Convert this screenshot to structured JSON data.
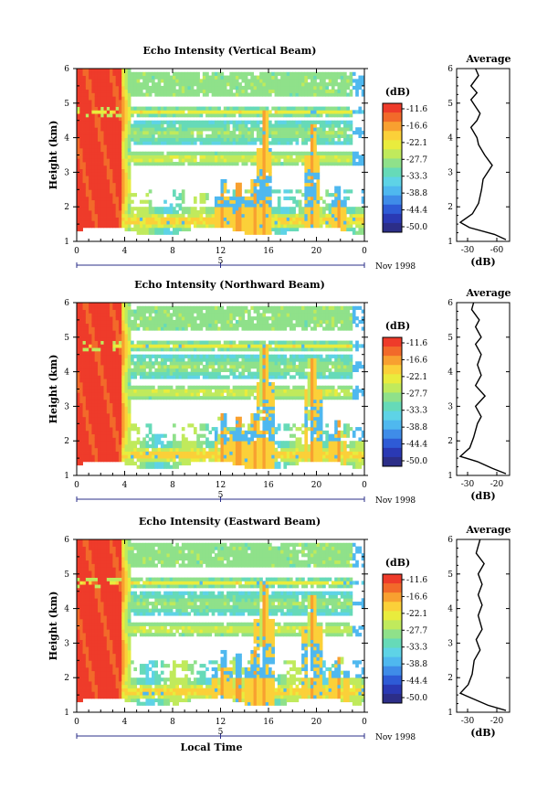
{
  "chart_data": [
    {
      "type": "heatmap",
      "title": "Echo Intensity (Vertical Beam)",
      "xlabel": "",
      "ylabel": "Height (km)",
      "xticks": [
        "0",
        "4",
        "8",
        "12",
        "16",
        "20",
        "0"
      ],
      "yticks": [
        "1",
        "2",
        "3",
        "4",
        "5",
        "6"
      ],
      "xlim": [
        0,
        24
      ],
      "ylim": [
        1,
        6
      ],
      "date_axis": {
        "tick": "5",
        "label": "Nov 1998"
      },
      "colorbar": {
        "unit": "(dB)",
        "levels": [
          "-11.6",
          "-16.6",
          "-22.1",
          "-27.7",
          "-33.3",
          "-38.8",
          "-44.4",
          "-50.0"
        ]
      },
      "profile": {
        "title": "Average",
        "xlabel": "(dB)",
        "xticks": [
          "-30",
          "-60"
        ],
        "points": [
          [
            1.05,
            -20
          ],
          [
            1.2,
            -35
          ],
          [
            1.4,
            -68
          ],
          [
            1.55,
            -80
          ],
          [
            1.8,
            -64
          ],
          [
            2.1,
            -56
          ],
          [
            2.5,
            -52
          ],
          [
            2.8,
            -50
          ],
          [
            3.0,
            -44
          ],
          [
            3.2,
            -38
          ],
          [
            3.5,
            -48
          ],
          [
            3.8,
            -56
          ],
          [
            4.0,
            -58
          ],
          [
            4.3,
            -66
          ],
          [
            4.5,
            -58
          ],
          [
            4.7,
            -54
          ],
          [
            4.9,
            -60
          ],
          [
            5.1,
            -66
          ],
          [
            5.3,
            -58
          ],
          [
            5.5,
            -66
          ],
          [
            5.8,
            -56
          ],
          [
            6.0,
            -60
          ]
        ]
      }
    },
    {
      "type": "heatmap",
      "title": "Echo Intensity (Northward Beam)",
      "xlabel": "",
      "ylabel": "Height (km)",
      "xticks": [
        "0",
        "4",
        "8",
        "12",
        "16",
        "20",
        "0"
      ],
      "yticks": [
        "1",
        "2",
        "3",
        "4",
        "5",
        "6"
      ],
      "xlim": [
        0,
        24
      ],
      "ylim": [
        1,
        6
      ],
      "date_axis": {
        "tick": "5",
        "label": "Nov 1998"
      },
      "colorbar": {
        "unit": "(dB)",
        "levels": [
          "-11.6",
          "-16.6",
          "-22.1",
          "-27.7",
          "-33.3",
          "-38.8",
          "-44.4",
          "-50.0"
        ]
      },
      "profile": {
        "title": "Average",
        "xlabel": "(dB)",
        "xticks": [
          "-30",
          "-20"
        ],
        "points": [
          [
            1.05,
            -11
          ],
          [
            1.2,
            -18
          ],
          [
            1.4,
            -26
          ],
          [
            1.55,
            -35
          ],
          [
            1.8,
            -30
          ],
          [
            2.1,
            -28
          ],
          [
            2.5,
            -26
          ],
          [
            2.7,
            -24
          ],
          [
            3.0,
            -27
          ],
          [
            3.3,
            -22
          ],
          [
            3.6,
            -27
          ],
          [
            3.9,
            -24
          ],
          [
            4.2,
            -26
          ],
          [
            4.5,
            -24
          ],
          [
            4.8,
            -27
          ],
          [
            5.0,
            -24
          ],
          [
            5.3,
            -27
          ],
          [
            5.5,
            -25
          ],
          [
            5.8,
            -29
          ],
          [
            6.0,
            -28
          ]
        ]
      }
    },
    {
      "type": "heatmap",
      "title": "Echo Intensity (Eastward Beam)",
      "xlabel": "Local Time",
      "ylabel": "Height (km)",
      "xticks": [
        "0",
        "4",
        "8",
        "12",
        "16",
        "20",
        "0"
      ],
      "yticks": [
        "1",
        "2",
        "3",
        "4",
        "5",
        "6"
      ],
      "xlim": [
        0,
        24
      ],
      "ylim": [
        1,
        6
      ],
      "date_axis": {
        "tick": "5",
        "label": "Nov 1998"
      },
      "colorbar": {
        "unit": "(dB)",
        "levels": [
          "-11.6",
          "-16.6",
          "-22.1",
          "-27.7",
          "-33.3",
          "-38.8",
          "-44.4",
          "-50.0"
        ]
      },
      "profile": {
        "title": "Average",
        "xlabel": "(dB)",
        "xticks": [
          "-30",
          "-20"
        ],
        "points": [
          [
            1.05,
            -11
          ],
          [
            1.2,
            -20
          ],
          [
            1.4,
            -28
          ],
          [
            1.55,
            -34
          ],
          [
            1.8,
            -30
          ],
          [
            2.1,
            -28
          ],
          [
            2.5,
            -27
          ],
          [
            2.8,
            -24
          ],
          [
            3.1,
            -26
          ],
          [
            3.4,
            -23
          ],
          [
            3.8,
            -25
          ],
          [
            4.1,
            -23
          ],
          [
            4.4,
            -25
          ],
          [
            4.7,
            -23
          ],
          [
            5.0,
            -25
          ],
          [
            5.3,
            -22
          ],
          [
            5.6,
            -26
          ],
          [
            6.0,
            -24
          ]
        ]
      }
    }
  ]
}
